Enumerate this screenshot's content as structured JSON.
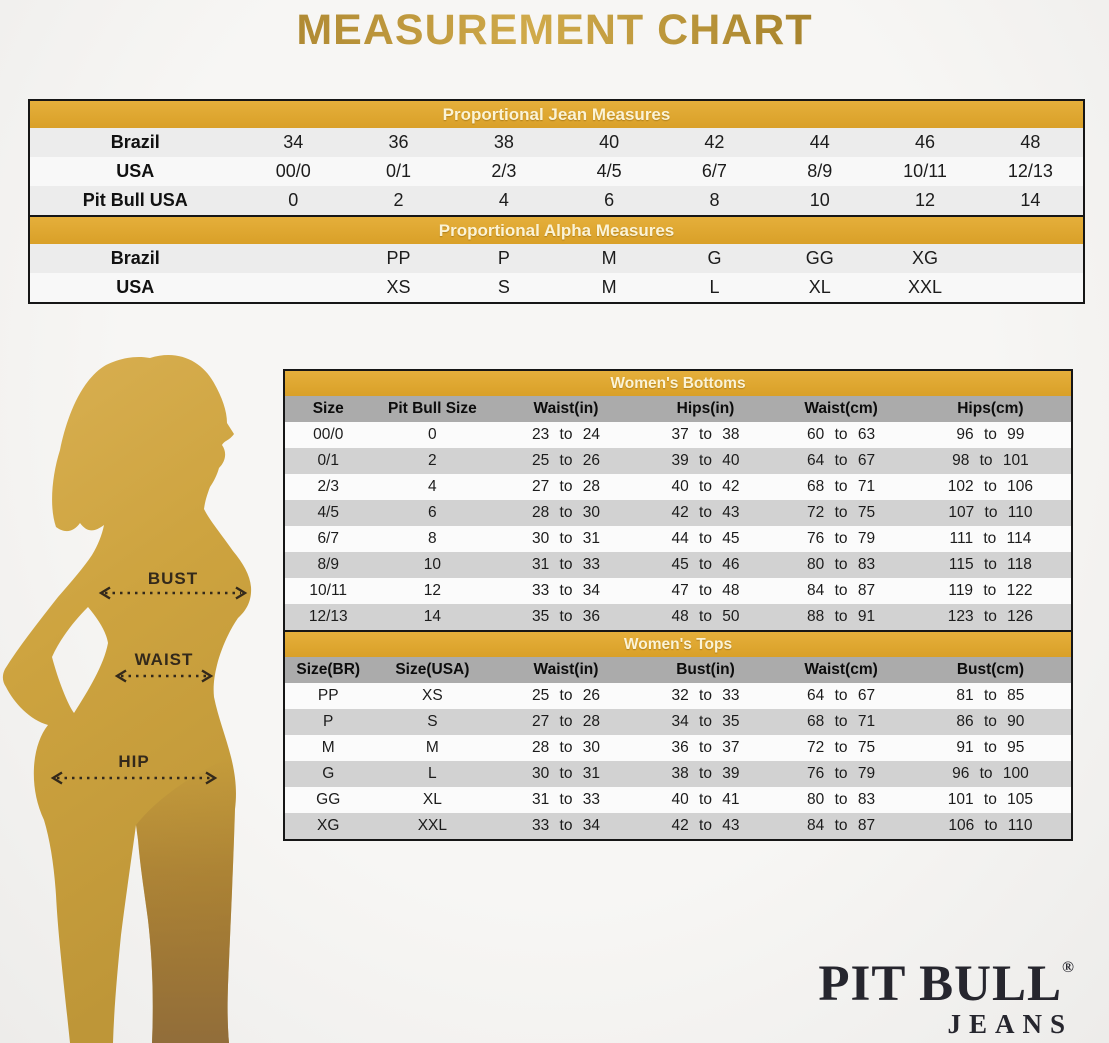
{
  "title": "MEASUREMENT CHART",
  "colors": {
    "gold_bar": "#DFA72E",
    "gray_header": "#ABABAB",
    "row_gray": "#D2D2D2",
    "row_light": "#ECECEC",
    "border_dark": "#161616",
    "silhouette_gold": "#C89E3C",
    "silhouette_leg_brown": "#8F6B3A",
    "logo_ink": "#26262E",
    "arrow_ink": "#33291B"
  },
  "jean_table": {
    "header": "Proportional Jean Measures",
    "rows": [
      {
        "label": "Brazil",
        "values": [
          "34",
          "36",
          "38",
          "40",
          "42",
          "44",
          "46",
          "48"
        ]
      },
      {
        "label": "USA",
        "values": [
          "00/0",
          "0/1",
          "2/3",
          "4/5",
          "6/7",
          "8/9",
          "10/11",
          "12/13"
        ]
      },
      {
        "label": "Pit Bull USA",
        "values": [
          "0",
          "2",
          "4",
          "6",
          "8",
          "10",
          "12",
          "14"
        ]
      }
    ]
  },
  "alpha_table": {
    "header": "Proportional Alpha Measures",
    "rows": [
      {
        "label": "Brazil",
        "values": [
          "",
          "PP",
          "P",
          "M",
          "G",
          "GG",
          "XG",
          ""
        ]
      },
      {
        "label": "USA",
        "values": [
          "",
          "XS",
          "S",
          "M",
          "L",
          "XL",
          "XXL",
          ""
        ]
      }
    ]
  },
  "bottoms_table": {
    "header": "Women's Bottoms",
    "columns": [
      "Size",
      "Pit Bull Size",
      "Waist(in)",
      "Hips(in)",
      "Waist(cm)",
      "Hips(cm)"
    ],
    "rows": [
      [
        "00/0",
        "0",
        "23 to 24",
        "37 to 38",
        "60 to 63",
        "96 to 99"
      ],
      [
        "0/1",
        "2",
        "25 to 26",
        "39 to 40",
        "64 to 67",
        "98 to 101"
      ],
      [
        "2/3",
        "4",
        "27 to 28",
        "40 to 42",
        "68 to 71",
        "102 to 106"
      ],
      [
        "4/5",
        "6",
        "28 to 30",
        "42 to 43",
        "72 to 75",
        "107 to 110"
      ],
      [
        "6/7",
        "8",
        "30 to 31",
        "44 to 45",
        "76 to 79",
        "111 to 114"
      ],
      [
        "8/9",
        "10",
        "31 to 33",
        "45 to 46",
        "80 to 83",
        "115 to 118"
      ],
      [
        "10/11",
        "12",
        "33 to 34",
        "47 to 48",
        "84 to 87",
        "119 to 122"
      ],
      [
        "12/13",
        "14",
        "35 to 36",
        "48 to 50",
        "88 to 91",
        "123 to 126"
      ]
    ]
  },
  "tops_table": {
    "header": "Women's Tops",
    "columns": [
      "Size(BR)",
      "Size(USA)",
      "Waist(in)",
      "Bust(in)",
      "Waist(cm)",
      "Bust(cm)"
    ],
    "rows": [
      [
        "PP",
        "XS",
        "25 to 26",
        "32 to 33",
        "64 to 67",
        "81 to 85"
      ],
      [
        "P",
        "S",
        "27 to 28",
        "34 to 35",
        "68 to 71",
        "86 to 90"
      ],
      [
        "M",
        "M",
        "28 to 30",
        "36 to 37",
        "72 to 75",
        "91 to 95"
      ],
      [
        "G",
        "L",
        "30 to 31",
        "38 to 39",
        "76 to 79",
        "96 to 100"
      ],
      [
        "GG",
        "XL",
        "31 to 33",
        "40 to 41",
        "80 to 83",
        "101 to 105"
      ],
      [
        "XG",
        "XXL",
        "33 to 34",
        "42 to 43",
        "84 to 87",
        "106 to 110"
      ]
    ]
  },
  "figure": {
    "labels": {
      "bust": "BUST",
      "waist": "WAIST",
      "hip": "HIP"
    }
  },
  "logo": {
    "brand": "PIT BULL",
    "registered": "®",
    "sub": "JEANS"
  }
}
